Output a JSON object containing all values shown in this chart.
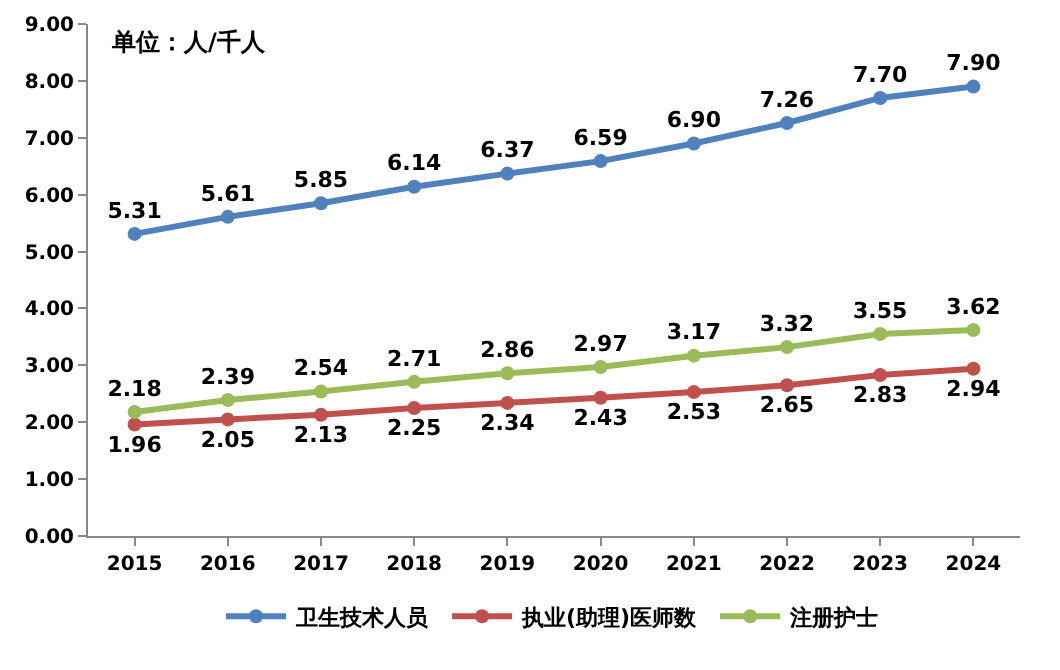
{
  "chart_data": {
    "type": "line",
    "categories": [
      "2015",
      "2016",
      "2017",
      "2018",
      "2019",
      "2020",
      "2021",
      "2022",
      "2023",
      "2024"
    ],
    "series": [
      {
        "name": "卫生技术人员",
        "color": "#4f81bd",
        "values": [
          5.31,
          5.61,
          5.85,
          6.14,
          6.37,
          6.59,
          6.9,
          7.26,
          7.7,
          7.9
        ],
        "value_labels": [
          "5.31",
          "5.61",
          "5.85",
          "6.14",
          "6.37",
          "6.59",
          "6.90",
          "7.26",
          "7.70",
          "7.90"
        ]
      },
      {
        "name": "执业(助理)医师数",
        "color": "#c0504d",
        "values": [
          1.96,
          2.05,
          2.13,
          2.25,
          2.34,
          2.43,
          2.53,
          2.65,
          2.83,
          2.94
        ],
        "value_labels": [
          "1.96",
          "2.05",
          "2.13",
          "2.25",
          "2.34",
          "2.43",
          "2.53",
          "2.65",
          "2.83",
          "2.94"
        ]
      },
      {
        "name": "注册护士",
        "color": "#9bbb59",
        "values": [
          2.18,
          2.39,
          2.54,
          2.71,
          2.86,
          2.97,
          3.17,
          3.32,
          3.55,
          3.62
        ],
        "value_labels": [
          "2.18",
          "2.39",
          "2.54",
          "2.71",
          "2.86",
          "2.97",
          "3.17",
          "3.32",
          "3.55",
          "3.62"
        ]
      }
    ],
    "ylim": [
      0,
      9
    ],
    "yticks": [
      {
        "value": 0,
        "label": "0.00"
      },
      {
        "value": 1,
        "label": "1.00"
      },
      {
        "value": 2,
        "label": "2.00"
      },
      {
        "value": 3,
        "label": "3.00"
      },
      {
        "value": 4,
        "label": "4.00"
      },
      {
        "value": 5,
        "label": "5.00"
      },
      {
        "value": 6,
        "label": "6.00"
      },
      {
        "value": 7,
        "label": "7.00"
      },
      {
        "value": 8,
        "label": "8.00"
      },
      {
        "value": 9,
        "label": "9.00"
      }
    ],
    "annotations": [
      "单位：人/千人"
    ],
    "grid": false,
    "legend": "bottom",
    "marker": "circle",
    "line_style": "solid"
  }
}
